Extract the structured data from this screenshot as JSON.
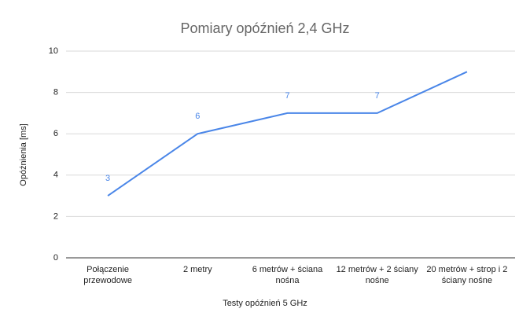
{
  "chart_data": {
    "type": "line",
    "title": "Pomiary opóźnień 2,4 GHz",
    "x_label": "Testy opóźnień 5 GHz",
    "y_label": "Opóźnienia [ms]",
    "categories": [
      "Połączenie przewodowe",
      "2 metry",
      "6 metrów + ściana nośna",
      "12 metrów + 2 ściany nośne",
      "20 metrów + strop i 2 ściany nośne"
    ],
    "values": [
      3,
      6,
      7,
      7,
      9
    ],
    "value_labels": [
      "3",
      "6",
      "7",
      "7",
      null
    ],
    "color": "#4a86e8",
    "ylim": [
      0,
      10
    ],
    "yticks": [
      0,
      2,
      4,
      6,
      8,
      10
    ],
    "grid": true
  }
}
